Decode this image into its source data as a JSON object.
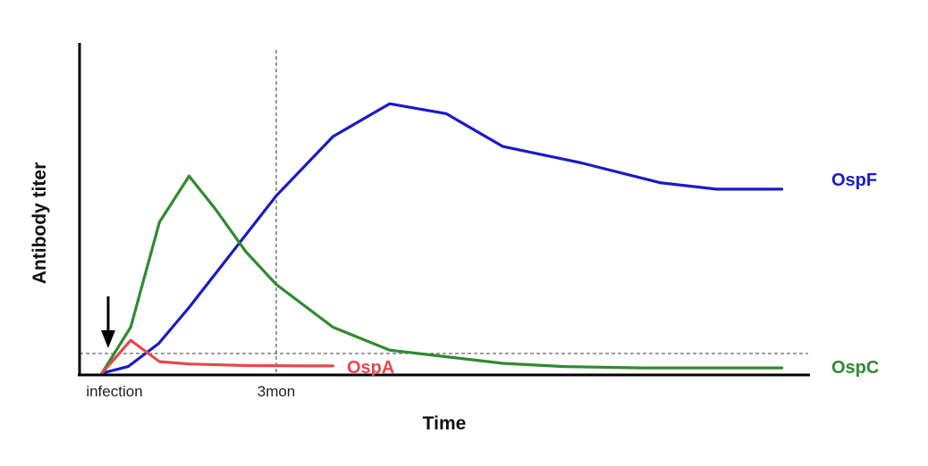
{
  "chart_data": {
    "type": "line",
    "xlabel": "Time",
    "ylabel": "Antibody titer",
    "xlim": [
      0,
      8.4
    ],
    "ylim": [
      0,
      100
    ],
    "grid": false,
    "legend": "inline, right of line ends",
    "tick_labels": [
      {
        "x": 0,
        "label": "infection"
      },
      {
        "x": 2,
        "label": "3mon"
      }
    ],
    "reference_lines": {
      "vertical_x": 2,
      "horizontal_y": 6
    },
    "infection_arrow": true,
    "series": [
      {
        "name": "OspF",
        "color": "#1a1ac8",
        "points": [
          [
            0,
            0
          ],
          [
            0.3,
            2
          ],
          [
            0.65,
            9
          ],
          [
            1,
            20
          ],
          [
            1.5,
            37
          ],
          [
            2,
            54
          ],
          [
            2.65,
            72
          ],
          [
            3.3,
            82
          ],
          [
            3.95,
            79
          ],
          [
            4.6,
            69
          ],
          [
            5.5,
            64
          ],
          [
            6.4,
            58
          ],
          [
            7.05,
            56
          ],
          [
            7.8,
            56
          ]
        ]
      },
      {
        "name": "OspC",
        "color": "#2e8b2e",
        "points": [
          [
            0,
            0
          ],
          [
            0.33,
            14
          ],
          [
            0.66,
            46
          ],
          [
            1,
            60
          ],
          [
            1.3,
            50
          ],
          [
            1.65,
            37
          ],
          [
            2,
            27
          ],
          [
            2.65,
            14
          ],
          [
            3.3,
            7
          ],
          [
            3.95,
            5
          ],
          [
            4.6,
            3
          ],
          [
            5.3,
            2
          ],
          [
            6.2,
            1.6
          ],
          [
            7.8,
            1.6
          ]
        ]
      },
      {
        "name": "OspA",
        "color": "#e8484b",
        "points": [
          [
            0,
            0
          ],
          [
            0.33,
            10
          ],
          [
            0.66,
            3.5
          ],
          [
            1,
            2.8
          ],
          [
            1.65,
            2.3
          ],
          [
            2.3,
            2.2
          ],
          [
            2.65,
            2.2
          ]
        ]
      }
    ]
  }
}
